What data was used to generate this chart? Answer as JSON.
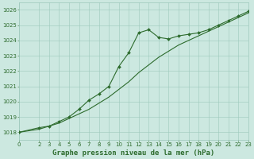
{
  "background_color": "#cce8e0",
  "grid_color": "#9dc8bc",
  "line_color": "#2d6b2d",
  "xlabel": "Graphe pression niveau de la mer (hPa)",
  "ylim": [
    1017.5,
    1026.5
  ],
  "xlim": [
    0,
    23
  ],
  "yticks": [
    1018,
    1019,
    1020,
    1021,
    1022,
    1023,
    1024,
    1025,
    1026
  ],
  "xticks": [
    0,
    2,
    3,
    4,
    5,
    6,
    7,
    8,
    9,
    10,
    11,
    12,
    13,
    14,
    15,
    16,
    17,
    18,
    19,
    20,
    21,
    22,
    23
  ],
  "line1_x": [
    0,
    2,
    3,
    4,
    5,
    6,
    7,
    8,
    9,
    10,
    11,
    12,
    13,
    14,
    15,
    16,
    17,
    18,
    19,
    20,
    21,
    22,
    23
  ],
  "line1_y": [
    1018.0,
    1018.2,
    1018.4,
    1018.6,
    1018.9,
    1019.2,
    1019.5,
    1019.9,
    1020.3,
    1020.8,
    1021.3,
    1021.9,
    1022.4,
    1022.9,
    1023.3,
    1023.7,
    1024.0,
    1024.3,
    1024.6,
    1024.9,
    1025.2,
    1025.5,
    1025.8
  ],
  "line2_x": [
    0,
    2,
    3,
    4,
    5,
    6,
    7,
    8,
    9,
    10,
    11,
    12,
    13,
    14,
    15,
    16,
    17,
    18,
    19,
    20,
    21,
    22,
    23
  ],
  "line2_y": [
    1018.0,
    1018.3,
    1018.4,
    1018.7,
    1019.0,
    1019.5,
    1020.1,
    1020.5,
    1021.0,
    1022.3,
    1023.2,
    1024.5,
    1024.7,
    1024.2,
    1024.1,
    1024.3,
    1024.4,
    1024.5,
    1024.7,
    1025.0,
    1025.3,
    1025.6,
    1025.9
  ],
  "title_fontsize": 6.5,
  "tick_fontsize": 5.0,
  "marker_size": 2.0,
  "linewidth": 0.8
}
